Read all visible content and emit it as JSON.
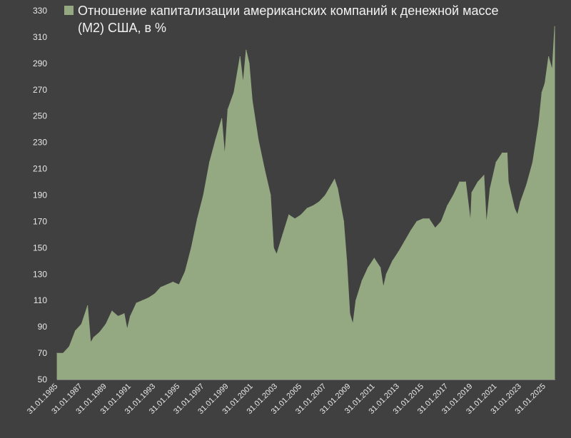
{
  "colors": {
    "background": "#404040",
    "area": "#94a882",
    "text": "#e8e8e8"
  },
  "chart_data": {
    "type": "area",
    "legend": {
      "label": "Отношение капитализации американских компаний к денежной массе (М2) США, в %",
      "placement": "top-left"
    },
    "ylim": [
      50,
      330
    ],
    "yticks": [
      50,
      70,
      90,
      110,
      130,
      150,
      170,
      190,
      210,
      230,
      250,
      270,
      290,
      310,
      330
    ],
    "grid": false,
    "xlabel": "",
    "ylabel": "",
    "xticks": [
      "31.01.1985",
      "31.01.1987",
      "31.01.1989",
      "31.01.1991",
      "31.01.1993",
      "31.01.1995",
      "31.01.1997",
      "31.01.1999",
      "31.01.2001",
      "31.01.2003",
      "31.01.2005",
      "31.01.2007",
      "31.01.2009",
      "31.01.2011",
      "31.01.2013",
      "31.01.2015",
      "31.01.2017",
      "31.01.2019",
      "31.01.2021",
      "31.01.2023",
      "31.01.2025"
    ],
    "x": [
      1985.0,
      1985.5,
      1986.0,
      1986.5,
      1987.0,
      1987.5,
      1987.75,
      1988.0,
      1988.5,
      1989.0,
      1989.5,
      1990.0,
      1990.5,
      1990.75,
      1991.0,
      1991.5,
      1992.0,
      1992.5,
      1993.0,
      1993.5,
      1994.0,
      1994.5,
      1995.0,
      1995.5,
      1996.0,
      1996.5,
      1997.0,
      1997.5,
      1998.0,
      1998.5,
      1998.75,
      1999.0,
      1999.5,
      2000.0,
      2000.25,
      2000.5,
      2000.75,
      2001.0,
      2001.5,
      2002.0,
      2002.5,
      2002.75,
      2003.0,
      2003.5,
      2004.0,
      2004.5,
      2005.0,
      2005.5,
      2006.0,
      2006.5,
      2007.0,
      2007.5,
      2007.75,
      2008.0,
      2008.5,
      2008.75,
      2009.0,
      2009.25,
      2009.5,
      2010.0,
      2010.5,
      2011.0,
      2011.5,
      2011.75,
      2012.0,
      2012.5,
      2013.0,
      2013.5,
      2014.0,
      2014.5,
      2015.0,
      2015.5,
      2016.0,
      2016.5,
      2017.0,
      2017.5,
      2018.0,
      2018.5,
      2018.9,
      2019.0,
      2019.5,
      2020.0,
      2020.2,
      2020.5,
      2021.0,
      2021.5,
      2021.9,
      2022.0,
      2022.5,
      2022.75,
      2023.0,
      2023.5,
      2024.0,
      2024.5,
      2024.75,
      2025.0,
      2025.3,
      2025.6,
      2025.8
    ],
    "values": [
      70,
      70,
      75,
      87,
      92,
      106,
      78,
      82,
      86,
      92,
      102,
      98,
      100,
      88,
      98,
      108,
      110,
      112,
      115,
      120,
      122,
      124,
      122,
      132,
      150,
      172,
      190,
      215,
      232,
      248,
      220,
      255,
      268,
      295,
      275,
      300,
      290,
      262,
      232,
      210,
      190,
      150,
      145,
      160,
      175,
      172,
      175,
      180,
      182,
      185,
      190,
      198,
      202,
      195,
      170,
      140,
      100,
      92,
      110,
      125,
      135,
      142,
      135,
      120,
      130,
      140,
      147,
      155,
      163,
      170,
      172,
      172,
      165,
      170,
      182,
      190,
      200,
      200,
      170,
      192,
      200,
      205,
      168,
      195,
      215,
      222,
      222,
      200,
      180,
      175,
      185,
      198,
      215,
      245,
      268,
      275,
      295,
      285,
      318
    ]
  }
}
